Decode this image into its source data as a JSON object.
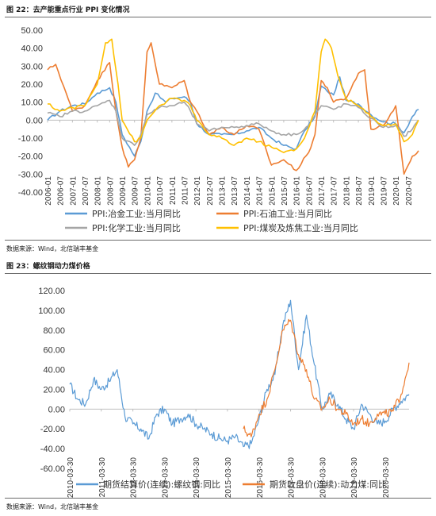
{
  "figure1": {
    "title": "图 22：去产能重点行业 PPI 变化情况",
    "source": "数据来源：Wind，北信瑞丰基金"
  },
  "figure2": {
    "title": "图 23：螺纹钢动力煤价格",
    "source": "数据来源：Wind，北信瑞丰基金"
  },
  "chart_data": [
    {
      "type": "line",
      "title": "图 22：去产能重点行业 PPI 变化情况",
      "xlabel": "",
      "ylabel": "",
      "ylim": [
        -40,
        50
      ],
      "yticks": [
        "50.00",
        "40.00",
        "30.00",
        "20.00",
        "10.00",
        "0.00",
        "-10.00",
        "-20.00",
        "-30.00",
        "-40.00"
      ],
      "x_ticks": [
        "2006-01",
        "2006-07",
        "2007-01",
        "2007-07",
        "2008-01",
        "2008-07",
        "2009-01",
        "2009-07",
        "2010-01",
        "2010-07",
        "2011-01",
        "2011-07",
        "2012-01",
        "2012-07",
        "2013-01",
        "2013-07",
        "2014-01",
        "2014-07",
        "2015-01",
        "2015-07",
        "2016-01",
        "2016-07",
        "2017-01",
        "2017-07",
        "2018-01",
        "2018-07",
        "2019-01",
        "2019-07",
        "2020-01",
        "2020-07"
      ],
      "x_range": [
        "2006-01",
        "2020-12"
      ],
      "legend_position": "bottom",
      "grid": false,
      "series": [
        {
          "name": "PPI:冶金工业:当月同比",
          "color": "#5b9bd5",
          "points": [
            [
              "2006-01",
              0
            ],
            [
              "2006-07",
              5
            ],
            [
              "2007-01",
              8
            ],
            [
              "2007-07",
              9
            ],
            [
              "2008-01",
              15
            ],
            [
              "2008-07",
              18
            ],
            [
              "2008-10",
              10
            ],
            [
              "2009-01",
              -8
            ],
            [
              "2009-07",
              -20
            ],
            [
              "2009-10",
              -12
            ],
            [
              "2010-01",
              5
            ],
            [
              "2010-05",
              15
            ],
            [
              "2010-10",
              10
            ],
            [
              "2011-01",
              12
            ],
            [
              "2011-07",
              13
            ],
            [
              "2011-10",
              10
            ],
            [
              "2012-01",
              -2
            ],
            [
              "2012-07",
              -8
            ],
            [
              "2013-01",
              -8
            ],
            [
              "2013-07",
              -8
            ],
            [
              "2014-01",
              -6
            ],
            [
              "2014-07",
              -4
            ],
            [
              "2015-01",
              -10
            ],
            [
              "2015-07",
              -14
            ],
            [
              "2016-01",
              -16
            ],
            [
              "2016-05",
              -6
            ],
            [
              "2016-10",
              2
            ],
            [
              "2017-01",
              19
            ],
            [
              "2017-04",
              16
            ],
            [
              "2017-07",
              14
            ],
            [
              "2017-10",
              24
            ],
            [
              "2018-01",
              11
            ],
            [
              "2018-07",
              9
            ],
            [
              "2019-01",
              3
            ],
            [
              "2019-07",
              -1
            ],
            [
              "2020-01",
              -2
            ],
            [
              "2020-05",
              -7
            ],
            [
              "2020-09",
              2
            ],
            [
              "2020-12",
              6
            ]
          ]
        },
        {
          "name": "PPI:石油工业:当月同比",
          "color": "#ed7d31",
          "points": [
            [
              "2006-01",
              28
            ],
            [
              "2006-05",
              31
            ],
            [
              "2006-10",
              15
            ],
            [
              "2007-01",
              5
            ],
            [
              "2007-07",
              8
            ],
            [
              "2008-01",
              22
            ],
            [
              "2008-07",
              32
            ],
            [
              "2008-10",
              5
            ],
            [
              "2009-01",
              -15
            ],
            [
              "2009-04",
              -26
            ],
            [
              "2009-07",
              -22
            ],
            [
              "2009-10",
              -10
            ],
            [
              "2010-01",
              38
            ],
            [
              "2010-03",
              43
            ],
            [
              "2010-07",
              20
            ],
            [
              "2011-01",
              18
            ],
            [
              "2011-07",
              22
            ],
            [
              "2011-10",
              10
            ],
            [
              "2012-01",
              5
            ],
            [
              "2012-07",
              -8
            ],
            [
              "2013-01",
              -4
            ],
            [
              "2013-07",
              -8
            ],
            [
              "2014-01",
              -3
            ],
            [
              "2014-07",
              -5
            ],
            [
              "2015-01",
              -25
            ],
            [
              "2015-07",
              -22
            ],
            [
              "2016-01",
              -28
            ],
            [
              "2016-07",
              -18
            ],
            [
              "2016-10",
              -8
            ],
            [
              "2017-01",
              22
            ],
            [
              "2017-04",
              18
            ],
            [
              "2017-07",
              10
            ],
            [
              "2018-01",
              12
            ],
            [
              "2018-07",
              26
            ],
            [
              "2018-10",
              28
            ],
            [
              "2019-01",
              -5
            ],
            [
              "2019-07",
              -3
            ],
            [
              "2020-01",
              8
            ],
            [
              "2020-05",
              -30
            ],
            [
              "2020-09",
              -20
            ],
            [
              "2020-12",
              -17
            ]
          ]
        },
        {
          "name": "PPI:化学工业:当月同比",
          "color": "#a5a5a5",
          "points": [
            [
              "2006-01",
              4
            ],
            [
              "2006-07",
              2
            ],
            [
              "2007-01",
              5
            ],
            [
              "2007-07",
              5
            ],
            [
              "2008-01",
              8
            ],
            [
              "2008-07",
              11
            ],
            [
              "2008-10",
              5
            ],
            [
              "2009-01",
              -10
            ],
            [
              "2009-07",
              -14
            ],
            [
              "2009-10",
              -8
            ],
            [
              "2010-01",
              3
            ],
            [
              "2010-07",
              7
            ],
            [
              "2011-01",
              8
            ],
            [
              "2011-07",
              10
            ],
            [
              "2011-10",
              5
            ],
            [
              "2012-01",
              -2
            ],
            [
              "2012-07",
              -6
            ],
            [
              "2013-01",
              -4
            ],
            [
              "2013-07",
              -4
            ],
            [
              "2014-01",
              -3
            ],
            [
              "2014-07",
              -2
            ],
            [
              "2015-01",
              -6
            ],
            [
              "2015-07",
              -8
            ],
            [
              "2016-01",
              -8
            ],
            [
              "2016-07",
              -3
            ],
            [
              "2017-01",
              8
            ],
            [
              "2017-07",
              6
            ],
            [
              "2018-01",
              9
            ],
            [
              "2018-07",
              7
            ],
            [
              "2019-01",
              1
            ],
            [
              "2019-07",
              -4
            ],
            [
              "2020-01",
              -3
            ],
            [
              "2020-05",
              -9
            ],
            [
              "2020-09",
              -5
            ],
            [
              "2020-12",
              0
            ]
          ]
        },
        {
          "name": "PPI:煤炭及炼焦工业:当月同比",
          "color": "#ffc000",
          "points": [
            [
              "2006-01",
              9
            ],
            [
              "2006-07",
              5
            ],
            [
              "2007-01",
              7
            ],
            [
              "2007-07",
              8
            ],
            [
              "2008-01",
              20
            ],
            [
              "2008-05",
              43
            ],
            [
              "2008-08",
              45
            ],
            [
              "2008-11",
              20
            ],
            [
              "2009-01",
              0
            ],
            [
              "2009-07",
              -12
            ],
            [
              "2009-10",
              -10
            ],
            [
              "2010-01",
              0
            ],
            [
              "2010-07",
              8
            ],
            [
              "2011-01",
              12
            ],
            [
              "2011-07",
              11
            ],
            [
              "2011-10",
              8
            ],
            [
              "2012-01",
              0
            ],
            [
              "2012-07",
              -8
            ],
            [
              "2013-01",
              -10
            ],
            [
              "2013-07",
              -14
            ],
            [
              "2014-01",
              -10
            ],
            [
              "2014-07",
              -12
            ],
            [
              "2015-01",
              -15
            ],
            [
              "2015-07",
              -18
            ],
            [
              "2016-01",
              -16
            ],
            [
              "2016-05",
              -10
            ],
            [
              "2016-10",
              5
            ],
            [
              "2017-01",
              38
            ],
            [
              "2017-03",
              45
            ],
            [
              "2017-06",
              40
            ],
            [
              "2017-09",
              25
            ],
            [
              "2018-01",
              12
            ],
            [
              "2018-07",
              8
            ],
            [
              "2019-01",
              2
            ],
            [
              "2019-07",
              -3
            ],
            [
              "2020-01",
              -2
            ],
            [
              "2020-05",
              -12
            ],
            [
              "2020-09",
              -8
            ],
            [
              "2020-12",
              0
            ]
          ]
        }
      ]
    },
    {
      "type": "line",
      "title": "图 23：螺纹钢动力煤价格",
      "xlabel": "",
      "ylabel": "",
      "ylim": [
        -60,
        120
      ],
      "yticks": [
        "120.00",
        "100.00",
        "80.00",
        "60.00",
        "40.00",
        "20.00",
        "0.00",
        "-20.00",
        "-40.00",
        "-60.00"
      ],
      "x_ticks": [
        "2010-03-30",
        "2011-03-30",
        "2012-03-30",
        "2013-03-30",
        "2014-03-30",
        "2015-03-30",
        "2016-03-30",
        "2017-03-30",
        "2018-03-30",
        "2019-03-30",
        "2020-03-30"
      ],
      "x_range": [
        "2010-03-30",
        "2020-12-31"
      ],
      "legend_position": "bottom",
      "grid": false,
      "series": [
        {
          "name": "期货结算价(连续):螺纹钢:同比",
          "color": "#5b9bd5",
          "points": [
            [
              "2010-03-30",
              25
            ],
            [
              "2010-06-30",
              10
            ],
            [
              "2010-09-30",
              5
            ],
            [
              "2010-12-30",
              30
            ],
            [
              "2011-03-30",
              20
            ],
            [
              "2011-06-30",
              28
            ],
            [
              "2011-09-30",
              40
            ],
            [
              "2011-12-30",
              -8
            ],
            [
              "2012-03-30",
              -15
            ],
            [
              "2012-06-30",
              -20
            ],
            [
              "2012-09-30",
              -30
            ],
            [
              "2012-12-30",
              -5
            ],
            [
              "2013-03-30",
              0
            ],
            [
              "2013-06-30",
              -15
            ],
            [
              "2013-09-30",
              -10
            ],
            [
              "2013-12-30",
              -5
            ],
            [
              "2014-03-30",
              -15
            ],
            [
              "2014-06-30",
              -20
            ],
            [
              "2014-09-30",
              -25
            ],
            [
              "2014-12-30",
              -30
            ],
            [
              "2015-03-30",
              -32
            ],
            [
              "2015-06-30",
              -28
            ],
            [
              "2015-09-30",
              -38
            ],
            [
              "2015-12-30",
              -35
            ],
            [
              "2016-03-30",
              -10
            ],
            [
              "2016-06-30",
              20
            ],
            [
              "2016-09-30",
              35
            ],
            [
              "2016-12-30",
              85
            ],
            [
              "2017-03-30",
              110
            ],
            [
              "2017-06-30",
              40
            ],
            [
              "2017-09-30",
              95
            ],
            [
              "2017-12-30",
              45
            ],
            [
              "2018-03-30",
              0
            ],
            [
              "2018-06-30",
              15
            ],
            [
              "2018-09-30",
              5
            ],
            [
              "2018-12-30",
              -10
            ],
            [
              "2019-03-30",
              -20
            ],
            [
              "2019-06-30",
              5
            ],
            [
              "2019-09-30",
              -5
            ],
            [
              "2019-12-30",
              -15
            ],
            [
              "2020-03-30",
              -12
            ],
            [
              "2020-06-30",
              0
            ],
            [
              "2020-09-30",
              8
            ],
            [
              "2020-12-31",
              15
            ]
          ]
        },
        {
          "name": "期货收盘价(连续):动力煤:同比",
          "color": "#ed7d31",
          "points": [
            [
              "2015-09-30",
              -20
            ],
            [
              "2015-12-30",
              -28
            ],
            [
              "2016-03-30",
              -5
            ],
            [
              "2016-06-30",
              10
            ],
            [
              "2016-09-30",
              40
            ],
            [
              "2016-12-30",
              80
            ],
            [
              "2017-03-30",
              90
            ],
            [
              "2017-06-30",
              55
            ],
            [
              "2017-09-30",
              40
            ],
            [
              "2017-12-30",
              10
            ],
            [
              "2018-03-30",
              0
            ],
            [
              "2018-06-30",
              10
            ],
            [
              "2018-09-30",
              0
            ],
            [
              "2018-12-30",
              -5
            ],
            [
              "2019-03-30",
              -15
            ],
            [
              "2019-06-30",
              -10
            ],
            [
              "2019-09-30",
              -15
            ],
            [
              "2019-12-30",
              -5
            ],
            [
              "2020-03-30",
              -5
            ],
            [
              "2020-06-30",
              -2
            ],
            [
              "2020-09-30",
              15
            ],
            [
              "2020-12-31",
              47
            ]
          ]
        }
      ]
    }
  ]
}
